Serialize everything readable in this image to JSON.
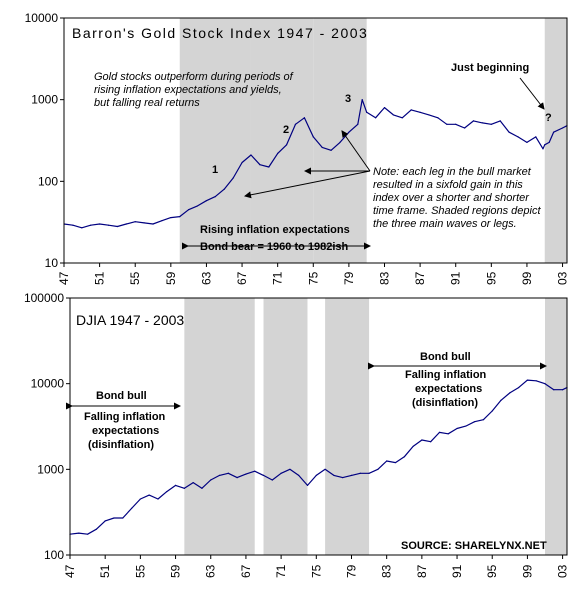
{
  "chart_data": [
    {
      "type": "line",
      "title": "Barron's Gold Stock Index 1947 - 2003",
      "y_scale": "log",
      "ylim": [
        10,
        10000
      ],
      "y_ticks": [
        "10",
        "100",
        "1000",
        "10000"
      ],
      "xlim": [
        1947,
        2003.5
      ],
      "x_tick_labels": [
        "47",
        "51",
        "55",
        "59",
        "63",
        "67",
        "71",
        "75",
        "79",
        "83",
        "87",
        "91",
        "95",
        "99",
        "03"
      ],
      "x_tick_values": [
        1947,
        1951,
        1955,
        1959,
        1963,
        1967,
        1971,
        1975,
        1979,
        1983,
        1987,
        1991,
        1995,
        1999,
        2003
      ],
      "shaded_regions": [
        [
          1960,
          1968
        ],
        [
          1968,
          1975
        ],
        [
          1975,
          1981
        ],
        [
          2001,
          2003.5
        ]
      ],
      "shading_color": "#d4d4d4",
      "line_color": "#000080",
      "series": [
        {
          "x": [
            1947,
            1948,
            1949,
            1950,
            1951,
            1952,
            1953,
            1954,
            1955,
            1956,
            1957,
            1958,
            1959,
            1960,
            1961,
            1962,
            1963,
            1964,
            1965,
            1966,
            1967,
            1968,
            1969,
            1970,
            1971,
            1972,
            1973,
            1974,
            1975,
            1976,
            1977,
            1978,
            1979,
            1980,
            1980.5,
            1981,
            1982,
            1983,
            1984,
            1985,
            1986,
            1987,
            1988,
            1989,
            1990,
            1991,
            1992,
            1993,
            1994,
            1995,
            1996,
            1997,
            1998,
            1999,
            2000,
            2000.8,
            2001,
            2001.5,
            2002,
            2003,
            2003.5
          ],
          "y": [
            30,
            29,
            27,
            29,
            30,
            29,
            28,
            30,
            32,
            31,
            30,
            33,
            36,
            37,
            45,
            50,
            58,
            65,
            80,
            110,
            170,
            210,
            160,
            150,
            220,
            280,
            500,
            600,
            350,
            260,
            240,
            300,
            400,
            500,
            1000,
            700,
            600,
            800,
            650,
            600,
            750,
            700,
            650,
            600,
            500,
            500,
            450,
            550,
            520,
            500,
            550,
            400,
            350,
            300,
            350,
            250,
            280,
            300,
            400,
            450,
            480
          ]
        }
      ],
      "annotations": [
        {
          "label": "1",
          "x": 1966,
          "y": 155
        },
        {
          "label": "2",
          "x": 1973,
          "y": 480
        },
        {
          "label": "3",
          "x": 1979,
          "y": 1000
        },
        {
          "label": "?",
          "x": 2001.5,
          "y": 390
        }
      ],
      "text_notes": {
        "description_lines": [
          "Gold stocks outperform during periods of",
          "rising inflation expectations and yields,",
          "but falling real returns"
        ],
        "just_beginning": "Just beginning",
        "note_lines": [
          "Note: each leg in the bull market",
          "resulted in a sixfold gain in this",
          "index over a shorter and shorter",
          "time frame.  Shaded regions depict",
          "the three main waves or legs."
        ],
        "rising_label": "Rising inflation expectations",
        "bond_bear_label": "Bond bear = 1960 to 1982ish"
      }
    },
    {
      "type": "line",
      "title": "DJIA 1947 - 2003",
      "y_scale": "log",
      "ylim": [
        100,
        100000
      ],
      "y_ticks": [
        "100",
        "1000",
        "10000",
        "100000"
      ],
      "xlim": [
        1947,
        2003.5
      ],
      "x_tick_labels": [
        "47",
        "51",
        "55",
        "59",
        "63",
        "67",
        "71",
        "75",
        "79",
        "83",
        "87",
        "91",
        "95",
        "99",
        "03"
      ],
      "x_tick_values": [
        1947,
        1951,
        1955,
        1959,
        1963,
        1967,
        1971,
        1975,
        1979,
        1983,
        1987,
        1991,
        1995,
        1999,
        2003
      ],
      "shaded_regions": [
        [
          1960,
          1968
        ],
        [
          1969,
          1974
        ],
        [
          1976,
          1981
        ],
        [
          2001,
          2003.5
        ]
      ],
      "shading_color": "#d4d4d4",
      "line_color": "#000080",
      "series": [
        {
          "x": [
            1947,
            1948,
            1949,
            1950,
            1951,
            1952,
            1953,
            1954,
            1955,
            1956,
            1957,
            1958,
            1959,
            1960,
            1961,
            1962,
            1963,
            1964,
            1965,
            1966,
            1967,
            1968,
            1969,
            1970,
            1971,
            1972,
            1973,
            1974,
            1975,
            1976,
            1977,
            1978,
            1979,
            1980,
            1981,
            1982,
            1983,
            1984,
            1985,
            1986,
            1987,
            1988,
            1989,
            1990,
            1991,
            1992,
            1993,
            1994,
            1995,
            1996,
            1997,
            1998,
            1999,
            2000,
            2001,
            2002,
            2003,
            2003.5
          ],
          "y": [
            175,
            180,
            175,
            200,
            250,
            270,
            270,
            350,
            450,
            500,
            450,
            550,
            650,
            600,
            700,
            600,
            750,
            850,
            900,
            800,
            880,
            950,
            850,
            750,
            900,
            1000,
            850,
            650,
            850,
            1000,
            850,
            800,
            850,
            900,
            900,
            1000,
            1250,
            1200,
            1400,
            1850,
            2200,
            2100,
            2700,
            2600,
            3000,
            3200,
            3600,
            3800,
            4800,
            6400,
            7800,
            9000,
            11000,
            10800,
            10000,
            8500,
            8500,
            9000
          ]
        }
      ],
      "text_notes": {
        "bond_bull_left": "Bond bull",
        "falling_left_lines": [
          "Falling inflation",
          "expectations",
          "(disinflation)"
        ],
        "bond_bull_right": "Bond bull",
        "falling_right_lines": [
          "Falling inflation",
          "expectations",
          "(disinflation)"
        ],
        "source": "SOURCE: SHARELYNX.NET"
      }
    }
  ]
}
